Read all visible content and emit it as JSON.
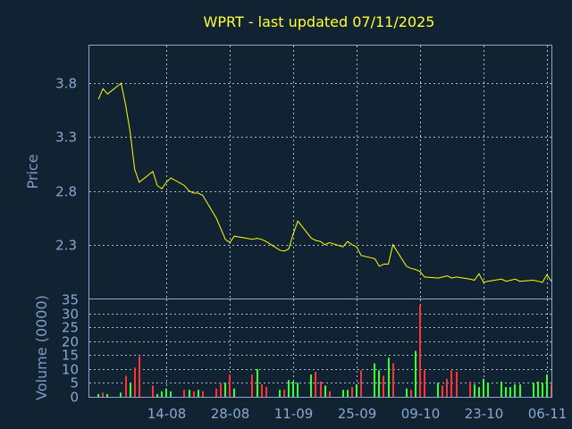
{
  "chart_data": [
    {
      "type": "line",
      "title": "WPRT - last updated 07/11/2025",
      "ylabel": "Price",
      "ylim": [
        1.8,
        4.15
      ],
      "yticks": [
        2.3,
        2.8,
        3.3,
        3.8
      ],
      "yticks_labels": [
        "2.3",
        "2.8",
        "3.3",
        "3.8"
      ],
      "x_dates": [
        "2025-07-30",
        "2025-07-31",
        "2025-08-01",
        "2025-08-04",
        "2025-08-05",
        "2025-08-06",
        "2025-08-07",
        "2025-08-08",
        "2025-08-11",
        "2025-08-12",
        "2025-08-13",
        "2025-08-14",
        "2025-08-15",
        "2025-08-18",
        "2025-08-19",
        "2025-08-20",
        "2025-08-21",
        "2025-08-22",
        "2025-08-25",
        "2025-08-26",
        "2025-08-27",
        "2025-08-28",
        "2025-08-29",
        "2025-09-02",
        "2025-09-03",
        "2025-09-04",
        "2025-09-05",
        "2025-09-08",
        "2025-09-09",
        "2025-09-10",
        "2025-09-11",
        "2025-09-12",
        "2025-09-15",
        "2025-09-16",
        "2025-09-17",
        "2025-09-18",
        "2025-09-19",
        "2025-09-22",
        "2025-09-23",
        "2025-09-24",
        "2025-09-25",
        "2025-09-26",
        "2025-09-29",
        "2025-09-30",
        "2025-10-01",
        "2025-10-02",
        "2025-10-03",
        "2025-10-06",
        "2025-10-07",
        "2025-10-08",
        "2025-10-09",
        "2025-10-10",
        "2025-10-13",
        "2025-10-14",
        "2025-10-15",
        "2025-10-16",
        "2025-10-17",
        "2025-10-20",
        "2025-10-21",
        "2025-10-22",
        "2025-10-23",
        "2025-10-24",
        "2025-10-27",
        "2025-10-28",
        "2025-10-29",
        "2025-10-30",
        "2025-10-31",
        "2025-11-03",
        "2025-11-04",
        "2025-11-05",
        "2025-11-06",
        "2025-11-07"
      ],
      "x_tick_dates": [
        "2025-08-14",
        "2025-08-28",
        "2025-09-11",
        "2025-09-25",
        "2025-10-09",
        "2025-10-23",
        "2025-11-06"
      ],
      "x_tick_labels": [
        "14-08",
        "28-08",
        "11-09",
        "25-09",
        "09-10",
        "23-10",
        "06-11"
      ],
      "series": [
        {
          "values": [
            3.65,
            3.75,
            3.7,
            3.8,
            3.6,
            3.35,
            3.0,
            2.88,
            2.98,
            2.85,
            2.82,
            2.88,
            2.92,
            2.85,
            2.8,
            2.78,
            2.78,
            2.76,
            2.55,
            2.45,
            2.35,
            2.32,
            2.38,
            2.35,
            2.36,
            2.35,
            2.33,
            2.25,
            2.24,
            2.26,
            2.4,
            2.52,
            2.36,
            2.34,
            2.33,
            2.3,
            2.32,
            2.28,
            2.33,
            2.3,
            2.28,
            2.2,
            2.17,
            2.1,
            2.12,
            2.12,
            2.3,
            2.1,
            2.08,
            2.07,
            2.05,
            2.0,
            1.99,
            2.0,
            2.01,
            1.99,
            2.0,
            1.98,
            1.97,
            2.03,
            1.95,
            1.96,
            1.98,
            1.96,
            1.97,
            1.98,
            1.96,
            1.97,
            1.96,
            1.95,
            2.02,
            1.96
          ],
          "color": "#ffff00"
        }
      ]
    },
    {
      "type": "bar",
      "ylabel": "Volume (0000)",
      "ylim": [
        0,
        35
      ],
      "yticks": [
        0,
        5,
        10,
        15,
        20,
        25,
        30,
        35
      ],
      "yticks_labels": [
        "0",
        "5",
        "10",
        "15",
        "20",
        "25",
        "30",
        "35"
      ],
      "values": [
        1.0,
        1.5,
        1.0,
        1.5,
        7.5,
        5.0,
        10.5,
        14.5,
        4.0,
        1.0,
        2.0,
        3.0,
        2.0,
        2.5,
        2.5,
        2.0,
        2.5,
        2.0,
        3.0,
        5.0,
        5.0,
        8.0,
        3.0,
        8.0,
        10.0,
        4.5,
        3.5,
        2.5,
        2.5,
        6.0,
        5.5,
        5.0,
        8.0,
        9.0,
        5.5,
        4.0,
        2.0,
        2.5,
        2.5,
        3.5,
        4.5,
        9.5,
        12.0,
        9.5,
        7.5,
        14.0,
        12.0,
        3.0,
        2.5,
        16.5,
        33.0,
        9.5,
        5.0,
        4.0,
        6.5,
        9.5,
        9.0,
        5.5,
        4.5,
        3.5,
        6.5,
        5.0,
        5.5,
        3.5,
        3.5,
        4.5,
        4.5,
        5.0,
        5.5,
        5.0,
        8.0,
        4.5
      ],
      "up": [
        true,
        false,
        true,
        true,
        false,
        true,
        false,
        false,
        false,
        true,
        true,
        true,
        true,
        false,
        true,
        false,
        true,
        false,
        false,
        false,
        true,
        false,
        true,
        false,
        true,
        false,
        false,
        true,
        false,
        true,
        true,
        true,
        true,
        false,
        false,
        true,
        false,
        true,
        true,
        false,
        true,
        false,
        true,
        true,
        false,
        true,
        false,
        true,
        false,
        true,
        false,
        false,
        true,
        false,
        false,
        false,
        false,
        false,
        true,
        true,
        true,
        true,
        true,
        true,
        true,
        true,
        true,
        true,
        true,
        true,
        true,
        false
      ],
      "up_color": "#33ff33",
      "down_color": "#ff3333"
    }
  ]
}
